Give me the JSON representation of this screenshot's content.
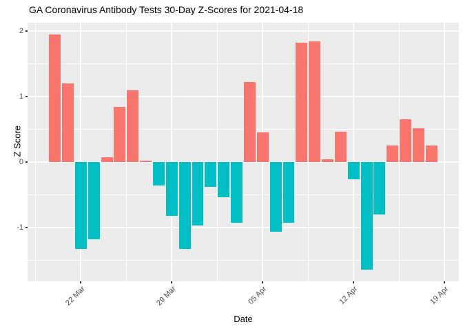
{
  "chart_data": {
    "type": "bar",
    "title": "GA Coronavirus Antibody Tests 30-Day Z-Scores for 2021-04-18",
    "xlabel": "Date",
    "ylabel": "Z Score",
    "x": [
      "2021-03-20",
      "2021-03-21",
      "2021-03-22",
      "2021-03-23",
      "2021-03-24",
      "2021-03-25",
      "2021-03-26",
      "2021-03-27",
      "2021-03-28",
      "2021-03-29",
      "2021-03-30",
      "2021-03-31",
      "2021-04-01",
      "2021-04-02",
      "2021-04-03",
      "2021-04-04",
      "2021-04-05",
      "2021-04-06",
      "2021-04-07",
      "2021-04-08",
      "2021-04-09",
      "2021-04-10",
      "2021-04-11",
      "2021-04-12",
      "2021-04-13",
      "2021-04-14",
      "2021-04-15",
      "2021-04-16",
      "2021-04-17",
      "2021-04-18"
    ],
    "values": [
      1.95,
      1.2,
      -1.33,
      -1.18,
      0.08,
      0.85,
      1.1,
      0.02,
      -0.36,
      -0.82,
      -1.32,
      -0.97,
      -0.38,
      -0.54,
      -0.93,
      1.22,
      0.46,
      -1.06,
      -0.92,
      1.82,
      1.85,
      0.04,
      0.47,
      -0.26,
      -1.64,
      -0.8,
      0.25,
      0.66,
      0.52,
      0.25
    ],
    "positive_color": "#F8766D",
    "negative_color": "#00BFC4",
    "panel_background": "#EBEBEB",
    "grid_color": "#FFFFFF",
    "tick_label_color": "#4D4D4D",
    "ylim": [
      -1.82,
      2.13
    ],
    "y_major_ticks": [
      "2",
      "1",
      "0",
      "-1"
    ],
    "y_major_values": [
      2,
      1,
      0,
      -1
    ],
    "y_minor_values": [
      1.5,
      0.5,
      -0.5,
      -1.5
    ],
    "x_tick_labels": [
      "22 Mar",
      "29 Mar",
      "05 Apr",
      "12 Apr",
      "19 Apr"
    ],
    "x_tick_days": [
      2,
      9,
      16,
      23,
      30
    ],
    "x_minor_days": [
      -1.5,
      5.5,
      12.5,
      19.5,
      26.5
    ],
    "xlim_days": [
      -2.1,
      31.1
    ],
    "bar_width_days": 0.9,
    "grid": true,
    "legend_position": "none"
  }
}
